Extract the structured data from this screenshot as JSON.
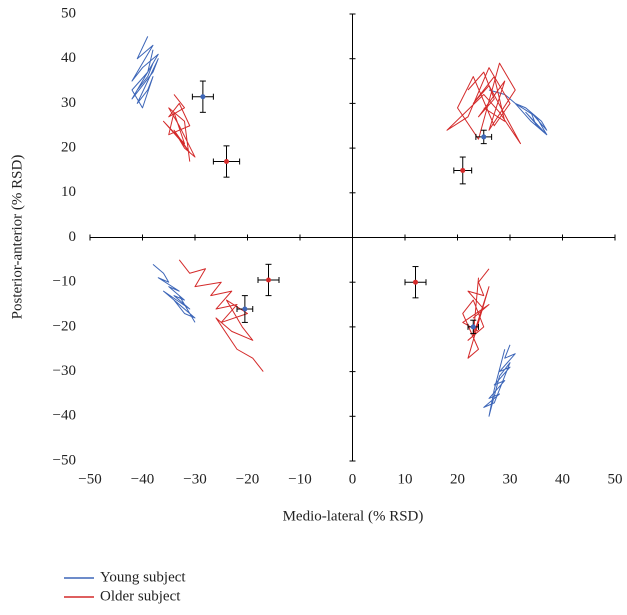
{
  "chart_data": {
    "type": "scatter",
    "xlabel": "Medio-lateral (% RSD)",
    "ylabel": "Posterior-anterior (% RSD)",
    "xlim": [
      -50,
      50
    ],
    "ylim": [
      -50,
      50
    ],
    "xticks": [
      {
        "value": -50,
        "label": "−50"
      },
      {
        "value": -40,
        "label": "−40"
      },
      {
        "value": -30,
        "label": "−30"
      },
      {
        "value": -20,
        "label": "−20"
      },
      {
        "value": -10,
        "label": "−10"
      },
      0,
      10,
      20,
      30,
      40,
      50
    ],
    "yticks": [
      {
        "value": -50,
        "label": "−50"
      },
      {
        "value": -40,
        "label": "−40"
      },
      {
        "value": -30,
        "label": "−30"
      },
      {
        "value": -20,
        "label": "−20"
      },
      {
        "value": -10,
        "label": "−10"
      },
      0,
      10,
      20,
      30,
      40,
      50
    ],
    "series": [
      {
        "name": "Young subject",
        "color": "#3d66b8",
        "trajectories": [
          {
            "x": [
              -39,
              -41,
              -38,
              -42,
              -40,
              -37,
              -41,
              -39,
              -38,
              -42,
              -40,
              -38,
              -37,
              -41,
              -39,
              -38,
              -40,
              -42,
              -39,
              -38
            ],
            "y": [
              45,
              40,
              43,
              35,
              38,
              41,
              33,
              36,
              39,
              31,
              34,
              37,
              40,
              30,
              33,
              36,
              29,
              33,
              37,
              42
            ]
          },
          {
            "x": [
              26,
              29,
              31,
              33,
              35,
              36,
              37,
              34,
              35,
              37,
              33,
              36,
              34,
              31,
              35,
              37,
              36
            ],
            "y": [
              33,
              32,
              30,
              29,
              27,
              26,
              24,
              28,
              25,
              23,
              28,
              24,
              26,
              30,
              27,
              23,
              25
            ]
          },
          {
            "x": [
              -38,
              -36,
              -35,
              -37,
              -33,
              -35,
              -32,
              -34,
              -31,
              -36,
              -33,
              -30,
              -32,
              -34,
              -31,
              -33,
              -30
            ],
            "y": [
              -6,
              -8,
              -10,
              -9,
              -12,
              -11,
              -14,
              -13,
              -16,
              -12,
              -15,
              -18,
              -17,
              -14,
              -17,
              -13,
              -19
            ]
          },
          {
            "x": [
              30,
              29,
              31,
              28,
              30,
              27,
              29,
              26,
              28,
              25,
              27,
              30,
              28,
              26,
              27,
              29
            ],
            "y": [
              -24,
              -27,
              -26,
              -30,
              -29,
              -33,
              -32,
              -36,
              -35,
              -38,
              -37,
              -28,
              -31,
              -40,
              -34,
              -25
            ]
          }
        ],
        "means": {
          "x": [
            -28.5,
            25,
            -20.5,
            23
          ],
          "y": [
            31.5,
            22.5,
            -16,
            -20
          ],
          "xerr": [
            2,
            1.5,
            1.5,
            1
          ],
          "yerr": [
            3.5,
            1.5,
            3,
            1.5
          ]
        }
      },
      {
        "name": "Older subject",
        "color": "#d42a2a",
        "trajectories": [
          {
            "x": [
              -34,
              -32,
              -35,
              -33,
              -31,
              -35,
              -34,
              -32,
              -36,
              -33,
              -31,
              -34,
              -32,
              -30,
              -33,
              -35,
              -32,
              -31
            ],
            "y": [
              32,
              29,
              27,
              30,
              25,
              23,
              28,
              21,
              26,
              22,
              19,
              24,
              20,
              18,
              25,
              29,
              26,
              17
            ]
          },
          {
            "x": [
              22,
              25,
              27,
              24,
              29,
              26,
              31,
              28,
              24,
              20,
              23,
              27,
              30,
              26,
              22,
              18,
              25,
              28,
              32,
              26,
              23,
              27,
              29,
              25
            ],
            "y": [
              33,
              37,
              31,
              27,
              35,
              24,
              33,
              39,
              22,
              29,
              36,
              25,
              30,
              38,
              27,
              24,
              32,
              28,
              21,
              34,
              30,
              36,
              26,
              29
            ]
          },
          {
            "x": [
              -33,
              -31,
              -28,
              -30,
              -25,
              -27,
              -23,
              -26,
              -22,
              -25,
              -20,
              -24,
              -21,
              -19,
              -23,
              -26,
              -22,
              -19,
              -17
            ],
            "y": [
              -5,
              -8,
              -7,
              -11,
              -10,
              -13,
              -12,
              -16,
              -15,
              -19,
              -17,
              -14,
              -20,
              -23,
              -21,
              -18,
              -25,
              -27,
              -30
            ]
          },
          {
            "x": [
              26,
              24,
              25,
              22,
              25,
              23,
              26,
              21,
              24,
              22,
              25,
              23,
              21,
              24,
              22,
              26,
              23,
              24
            ],
            "y": [
              -7,
              -10,
              -13,
              -12,
              -16,
              -18,
              -15,
              -19,
              -21,
              -23,
              -20,
              -14,
              -17,
              -25,
              -27,
              -11,
              -22,
              -9
            ]
          }
        ],
        "means": {
          "x": [
            -24,
            21,
            -16,
            12
          ],
          "y": [
            17,
            15,
            -9.5,
            -10
          ],
          "xerr": [
            2.5,
            1.7,
            2,
            2
          ],
          "yerr": [
            3.5,
            3,
            3.5,
            3.5
          ]
        }
      }
    ]
  }
}
